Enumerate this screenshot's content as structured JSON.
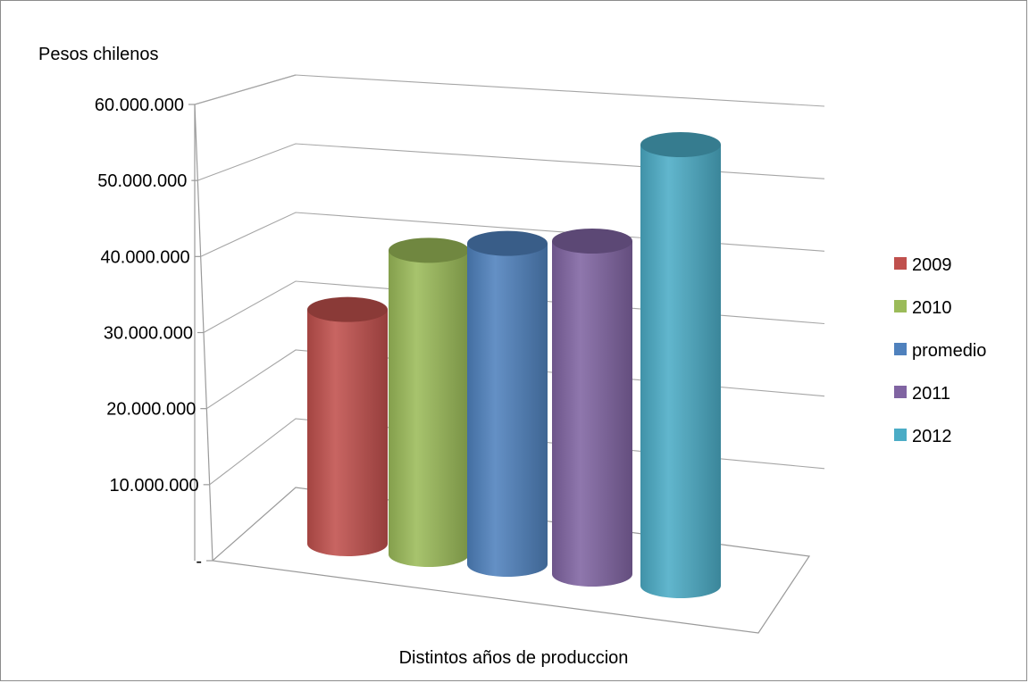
{
  "chart_data": {
    "type": "bar",
    "style": "3d-cylinder",
    "title": "",
    "ylabel": "Pesos chilenos",
    "xlabel": "Distintos años de produccion",
    "ylim": [
      0,
      60000000
    ],
    "y_ticks": [
      {
        "value": 0,
        "label": "-"
      },
      {
        "value": 10000000,
        "label": "10.000.000"
      },
      {
        "value": 20000000,
        "label": "20.000.000"
      },
      {
        "value": 30000000,
        "label": "30.000.000"
      },
      {
        "value": 40000000,
        "label": "40.000.000"
      },
      {
        "value": 50000000,
        "label": "50.000.000"
      },
      {
        "value": 60000000,
        "label": "60.000.000"
      }
    ],
    "grid": true,
    "legend_position": "right",
    "series": [
      {
        "name": "2009",
        "value": 30800000,
        "color": "#c0504d"
      },
      {
        "name": "2010",
        "value": 40000000,
        "color": "#9bbb59"
      },
      {
        "name": "promedio",
        "value": 42200000,
        "color": "#4f81bd"
      },
      {
        "name": "2011",
        "value": 43800000,
        "color": "#8064a2"
      },
      {
        "name": "2012",
        "value": 58000000,
        "color": "#4bacc6"
      }
    ]
  }
}
